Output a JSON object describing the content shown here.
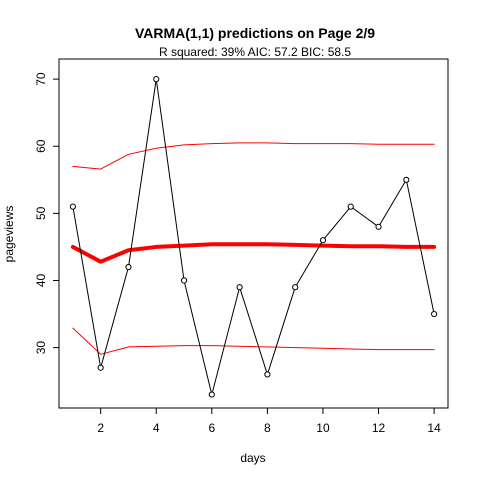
{
  "chart_data": {
    "type": "line",
    "title": "VARMA(1,1) predictions on Page 2/9",
    "subtitle": "R squared: 39% AIC: 57.2 BIC: 58.5",
    "xlabel": "days",
    "ylabel": "pageviews",
    "xlim": [
      0.5,
      14.5
    ],
    "ylim": [
      21,
      73
    ],
    "xticks": [
      2,
      4,
      6,
      8,
      10,
      12,
      14
    ],
    "yticks": [
      30,
      40,
      50,
      60,
      70
    ],
    "x": [
      1,
      2,
      3,
      4,
      5,
      6,
      7,
      8,
      9,
      10,
      11,
      12,
      13,
      14
    ],
    "series": [
      {
        "role": "observed",
        "color": "#000000",
        "markers": true,
        "values": [
          51,
          27,
          42,
          70,
          40,
          23,
          39,
          26,
          39,
          46,
          51,
          48,
          55,
          35
        ]
      },
      {
        "role": "prediction",
        "color": "#ff0000",
        "width": "thick",
        "values": [
          45,
          42.8,
          44.5,
          45,
          45.2,
          45.4,
          45.4,
          45.4,
          45.3,
          45.2,
          45.1,
          45.1,
          45,
          45
        ]
      },
      {
        "role": "upper-bound",
        "color": "#ff0000",
        "values": [
          57,
          56.6,
          58.8,
          59.7,
          60.2,
          60.4,
          60.5,
          60.5,
          60.4,
          60.4,
          60.4,
          60.3,
          60.3,
          60.3
        ]
      },
      {
        "role": "lower-bound",
        "color": "#ff0000",
        "values": [
          32.9,
          29,
          30.1,
          30.2,
          30.3,
          30.3,
          30.2,
          30.1,
          30,
          29.9,
          29.8,
          29.7,
          29.7,
          29.7
        ]
      }
    ],
    "grid": false,
    "legend": "none"
  }
}
